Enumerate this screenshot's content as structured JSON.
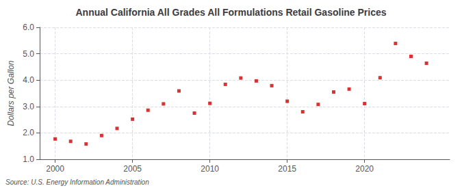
{
  "chart_data": {
    "type": "scatter",
    "title": "Annual California All Grades All Formulations Retail Gasoline Prices",
    "ylabel": "Dollars per Gallon",
    "source": "Source: U.S. Energy Information Administration",
    "x": [
      2000,
      2001,
      2002,
      2003,
      2004,
      2005,
      2006,
      2007,
      2008,
      2009,
      2010,
      2011,
      2012,
      2013,
      2014,
      2015,
      2016,
      2017,
      2018,
      2019,
      2020,
      2021,
      2022,
      2023,
      2024
    ],
    "values": [
      1.77,
      1.68,
      1.58,
      1.9,
      2.17,
      2.52,
      2.86,
      3.1,
      3.59,
      2.75,
      3.12,
      3.84,
      4.08,
      3.97,
      3.79,
      3.2,
      2.8,
      3.08,
      3.55,
      3.66,
      3.11,
      4.09,
      5.39,
      4.9,
      4.64
    ],
    "color": "#cc0000",
    "marker": "square",
    "xlim": [
      1999.0,
      2025.5
    ],
    "xticks": [
      2000,
      2005,
      2010,
      2015,
      2020
    ],
    "ylim": [
      1.0,
      6.0
    ],
    "yticks": [
      {
        "value": 1.0,
        "label": "1.0"
      },
      {
        "value": 2.0,
        "label": "2.0"
      },
      {
        "value": 3.0,
        "label": "3.0"
      },
      {
        "value": 4.0,
        "label": "4.0"
      },
      {
        "value": 5.0,
        "label": "5.0"
      },
      {
        "value": 6.0,
        "label": "6.0"
      }
    ],
    "grid": true
  }
}
